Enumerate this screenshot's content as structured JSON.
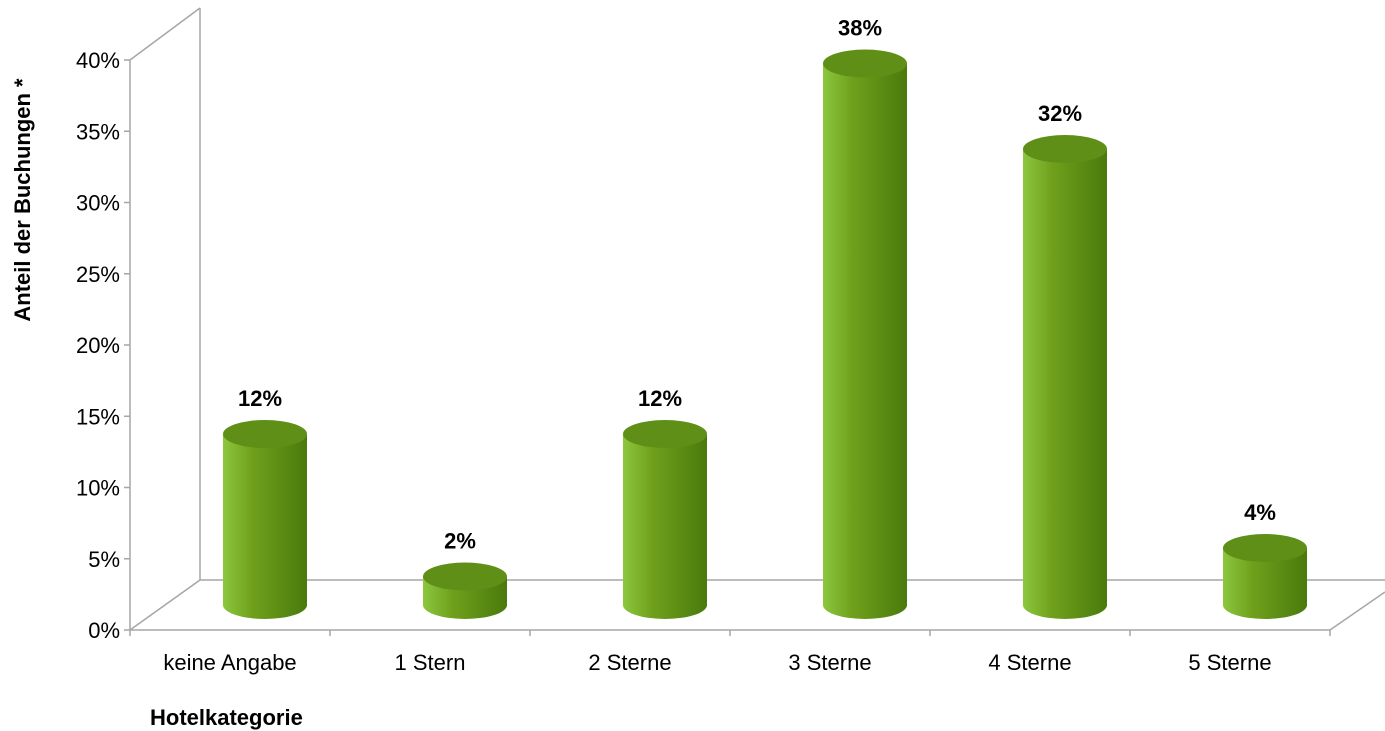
{
  "chart_data": {
    "type": "bar",
    "style": "3d-cylinder",
    "categories": [
      "keine Angabe",
      "1 Stern",
      "2 Sterne",
      "3 Sterne",
      "4 Sterne",
      "5 Sterne"
    ],
    "values": [
      12,
      2,
      12,
      38,
      32,
      4
    ],
    "data_labels": [
      "12%",
      "2%",
      "12%",
      "38%",
      "32%",
      "4%"
    ],
    "ytick_labels": [
      "0%",
      "5%",
      "10%",
      "15%",
      "20%",
      "25%",
      "30%",
      "35%",
      "40%"
    ],
    "ylim": [
      0,
      40
    ],
    "xlabel": "Hotelkategorie",
    "ylabel": "Anteil der Buchungen *",
    "grid": false,
    "legend": "none",
    "colors": {
      "bar_light": "#8cc63f",
      "bar_mid": "#6fa01c",
      "bar_dark": "#4a7a0c",
      "bar_top": "#5f8f17"
    }
  }
}
